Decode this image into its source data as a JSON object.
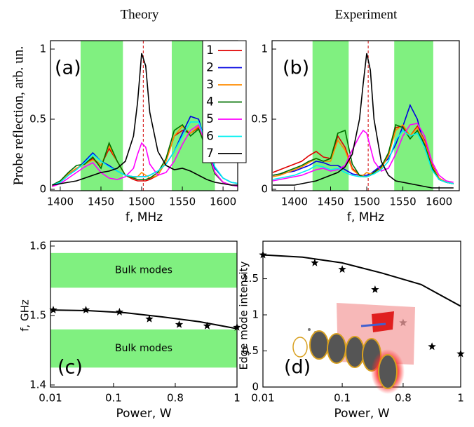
{
  "chart_data": [
    {
      "type": "line",
      "title": "Theory",
      "x_label": "f, MHz",
      "y_label": "Probe reflection, arb. un.",
      "annotation": "(a)",
      "xlim": [
        1388,
        1618
      ],
      "ylim": [
        -0.01,
        1.06
      ],
      "xticks": [
        1400,
        1450,
        1500,
        1550,
        1600
      ],
      "yticks": [
        0,
        0.5,
        1
      ],
      "legend": "upper right",
      "band_axis": "x",
      "band_color": "#80f080",
      "bands": [
        {
          "from": 1425,
          "to": 1477
        },
        {
          "from": 1537,
          "to": 1590
        }
      ],
      "vline": 1502,
      "vline_color": "#d00000",
      "x": [
        1390,
        1400,
        1410,
        1420,
        1430,
        1440,
        1450,
        1460,
        1470,
        1480,
        1490,
        1495,
        1500,
        1505,
        1510,
        1520,
        1530,
        1540,
        1550,
        1560,
        1570,
        1580,
        1590,
        1600,
        1610,
        1620
      ],
      "series": [
        {
          "name": "1",
          "color": "#e00000",
          "values": [
            0.02,
            0.05,
            0.11,
            0.15,
            0.18,
            0.22,
            0.17,
            0.29,
            0.2,
            0.1,
            0.07,
            0.06,
            0.06,
            0.06,
            0.07,
            0.1,
            0.2,
            0.38,
            0.42,
            0.4,
            0.44,
            0.3,
            0.12,
            0.05,
            0.03,
            0.02
          ]
        },
        {
          "name": "2",
          "color": "#0000e0",
          "values": [
            0.03,
            0.05,
            0.1,
            0.14,
            0.2,
            0.26,
            0.2,
            0.17,
            0.13,
            0.1,
            0.09,
            0.09,
            0.09,
            0.09,
            0.1,
            0.13,
            0.18,
            0.27,
            0.4,
            0.52,
            0.5,
            0.3,
            0.15,
            0.08,
            0.05,
            0.04
          ]
        },
        {
          "name": "3",
          "color": "#ff8c00",
          "values": [
            0.02,
            0.05,
            0.11,
            0.15,
            0.18,
            0.21,
            0.17,
            0.31,
            0.2,
            0.1,
            0.08,
            0.09,
            0.12,
            0.1,
            0.08,
            0.1,
            0.2,
            0.38,
            0.45,
            0.4,
            0.45,
            0.3,
            0.12,
            0.05,
            0.03,
            0.02
          ]
        },
        {
          "name": "4",
          "color": "#007000",
          "values": [
            0.03,
            0.06,
            0.12,
            0.17,
            0.18,
            0.23,
            0.15,
            0.33,
            0.2,
            0.1,
            0.08,
            0.07,
            0.07,
            0.07,
            0.08,
            0.12,
            0.22,
            0.42,
            0.46,
            0.38,
            0.43,
            0.28,
            0.11,
            0.05,
            0.03,
            0.02
          ]
        },
        {
          "name": "5",
          "color": "#ff00ff",
          "values": [
            0.02,
            0.04,
            0.08,
            0.12,
            0.16,
            0.19,
            0.12,
            0.08,
            0.07,
            0.09,
            0.15,
            0.25,
            0.33,
            0.3,
            0.18,
            0.1,
            0.12,
            0.2,
            0.32,
            0.42,
            0.46,
            0.3,
            0.12,
            0.05,
            0.03,
            0.02
          ]
        },
        {
          "name": "6",
          "color": "#00f0f0",
          "values": [
            0.03,
            0.05,
            0.1,
            0.14,
            0.19,
            0.25,
            0.2,
            0.16,
            0.13,
            0.1,
            0.09,
            0.09,
            0.09,
            0.09,
            0.1,
            0.13,
            0.18,
            0.27,
            0.38,
            0.48,
            0.48,
            0.32,
            0.16,
            0.08,
            0.05,
            0.04
          ]
        },
        {
          "name": "7",
          "color": "#000000",
          "values": [
            0.03,
            0.04,
            0.05,
            0.06,
            0.08,
            0.1,
            0.12,
            0.13,
            0.15,
            0.2,
            0.38,
            0.62,
            0.97,
            0.88,
            0.55,
            0.27,
            0.17,
            0.14,
            0.15,
            0.13,
            0.1,
            0.07,
            0.05,
            0.04,
            0.03,
            0.03
          ]
        }
      ]
    },
    {
      "type": "line",
      "title": "Experiment",
      "x_label": "f, MHz",
      "annotation": "(b)",
      "xlim": [
        1369,
        1628
      ],
      "ylim": [
        -0.01,
        1.06
      ],
      "xticks": [
        1400,
        1450,
        1500,
        1550,
        1600
      ],
      "yticks": [
        0,
        0.5,
        1
      ],
      "band_axis": "x",
      "band_color": "#80f080",
      "bands": [
        {
          "from": 1425,
          "to": 1475
        },
        {
          "from": 1538,
          "to": 1592
        }
      ],
      "vline": 1502,
      "vline_color": "#d00000",
      "x": [
        1370,
        1380,
        1390,
        1400,
        1410,
        1420,
        1430,
        1440,
        1450,
        1460,
        1470,
        1480,
        1490,
        1495,
        1500,
        1505,
        1510,
        1520,
        1530,
        1540,
        1550,
        1560,
        1570,
        1580,
        1590,
        1600,
        1610,
        1620
      ],
      "series": [
        {
          "color": "#e00000",
          "values": [
            0.12,
            0.14,
            0.16,
            0.18,
            0.2,
            0.24,
            0.27,
            0.23,
            0.22,
            0.38,
            0.3,
            0.15,
            0.1,
            0.09,
            0.09,
            0.1,
            0.12,
            0.16,
            0.25,
            0.44,
            0.45,
            0.38,
            0.45,
            0.35,
            0.18,
            0.08,
            0.05,
            0.04
          ]
        },
        {
          "color": "#0000e0",
          "values": [
            0.1,
            0.11,
            0.12,
            0.13,
            0.15,
            0.17,
            0.2,
            0.19,
            0.17,
            0.17,
            0.14,
            0.11,
            0.1,
            0.1,
            0.1,
            0.11,
            0.13,
            0.17,
            0.22,
            0.32,
            0.45,
            0.6,
            0.5,
            0.3,
            0.15,
            0.07,
            0.05,
            0.04
          ]
        },
        {
          "color": "#ff8c00",
          "values": [
            0.09,
            0.1,
            0.12,
            0.14,
            0.16,
            0.19,
            0.22,
            0.2,
            0.2,
            0.35,
            0.28,
            0.14,
            0.1,
            0.1,
            0.12,
            0.11,
            0.12,
            0.15,
            0.24,
            0.42,
            0.46,
            0.38,
            0.44,
            0.34,
            0.17,
            0.08,
            0.05,
            0.04
          ]
        },
        {
          "color": "#007000",
          "values": [
            0.1,
            0.11,
            0.13,
            0.15,
            0.17,
            0.2,
            0.22,
            0.2,
            0.22,
            0.4,
            0.42,
            0.18,
            0.1,
            0.09,
            0.09,
            0.1,
            0.12,
            0.16,
            0.26,
            0.46,
            0.44,
            0.36,
            0.42,
            0.32,
            0.16,
            0.07,
            0.05,
            0.04
          ]
        },
        {
          "color": "#ff00ff",
          "values": [
            0.06,
            0.07,
            0.08,
            0.09,
            0.1,
            0.12,
            0.14,
            0.15,
            0.13,
            0.14,
            0.17,
            0.28,
            0.38,
            0.42,
            0.4,
            0.3,
            0.2,
            0.13,
            0.15,
            0.25,
            0.38,
            0.46,
            0.47,
            0.38,
            0.2,
            0.1,
            0.06,
            0.05
          ]
        },
        {
          "color": "#00f0f0",
          "values": [
            0.07,
            0.08,
            0.09,
            0.1,
            0.12,
            0.14,
            0.17,
            0.16,
            0.14,
            0.15,
            0.12,
            0.1,
            0.09,
            0.09,
            0.09,
            0.1,
            0.11,
            0.14,
            0.2,
            0.35,
            0.42,
            0.38,
            0.4,
            0.3,
            0.14,
            0.07,
            0.05,
            0.04
          ]
        },
        {
          "color": "#000000",
          "values": [
            0.03,
            0.03,
            0.03,
            0.03,
            0.04,
            0.05,
            0.06,
            0.08,
            0.1,
            0.12,
            0.16,
            0.25,
            0.5,
            0.75,
            0.97,
            0.85,
            0.5,
            0.2,
            0.1,
            0.06,
            0.05,
            0.04,
            0.03,
            0.02,
            0.01,
            0.01,
            0.01,
            0.01
          ]
        }
      ]
    },
    {
      "type": "scatter",
      "x_label": "Power, W",
      "y_label": "f, GHz",
      "annotation": "(c)",
      "xlim": [
        0,
        1
      ],
      "ylim": [
        1.397,
        1.607
      ],
      "xticks": [
        {
          "value": 0,
          "label": "0.01"
        },
        {
          "value": 0.338,
          "label": "0.1"
        },
        {
          "value": 0.669,
          "label": "0.8"
        },
        {
          "value": 1,
          "label": "1"
        }
      ],
      "yticks": [
        1.4,
        1.5,
        1.6
      ],
      "band_axis": "y",
      "band_color": "#80f080",
      "bands": [
        {
          "from": 1.425,
          "to": 1.48,
          "label": "Bulk modes"
        },
        {
          "from": 1.54,
          "to": 1.59,
          "label": "Bulk modes"
        }
      ],
      "color": "#000000",
      "points": {
        "x": [
          0.015,
          0.19,
          0.37,
          0.53,
          0.69,
          0.84,
          1.0
        ],
        "values": [
          1.508,
          1.508,
          1.505,
          1.495,
          1.487,
          1.485,
          1.483
        ]
      },
      "fit": {
        "x": [
          0,
          0.2,
          0.4,
          0.6,
          0.8,
          1
        ],
        "values": [
          1.508,
          1.507,
          1.504,
          1.498,
          1.491,
          1.481
        ]
      }
    },
    {
      "type": "scatter",
      "x_label": "Power, W",
      "y_label": "Edge mode intensity",
      "annotation": "(d)",
      "xlim": [
        0,
        1
      ],
      "ylim": [
        0,
        2.02
      ],
      "xticks": [
        {
          "value": 0,
          "label": "0.01"
        },
        {
          "value": 0.401,
          "label": "0.1"
        },
        {
          "value": 0.709,
          "label": "0.8"
        },
        {
          "value": 1,
          "label": "1"
        }
      ],
      "yticks": [
        0,
        0.5,
        1,
        1.5
      ],
      "color": "#000000",
      "points": {
        "x": [
          0,
          0.262,
          0.401,
          0.567,
          0.709,
          0.855,
          1
        ],
        "values": [
          1.83,
          1.72,
          1.63,
          1.35,
          0.89,
          0.56,
          0.46
        ]
      },
      "fit": {
        "x": [
          0,
          0.2,
          0.4,
          0.6,
          0.8,
          1
        ],
        "values": [
          1.83,
          1.8,
          1.72,
          1.58,
          1.42,
          1.12
        ]
      }
    }
  ]
}
